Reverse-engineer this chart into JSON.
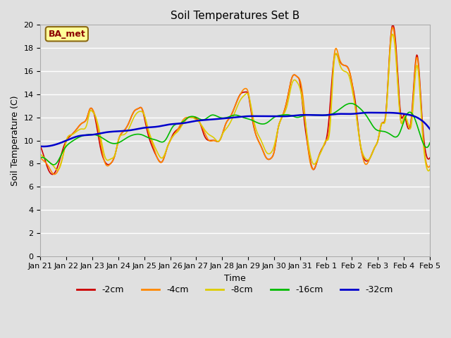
{
  "title": "Soil Temperatures Set B",
  "xlabel": "Time",
  "ylabel": "Soil Temperature (C)",
  "bg_color": "#e0e0e0",
  "ylim": [
    0,
    20
  ],
  "yticks": [
    0,
    2,
    4,
    6,
    8,
    10,
    12,
    14,
    16,
    18,
    20
  ],
  "annotation_text": "BA_met",
  "annotation_color": "#8b0000",
  "annotation_bg": "#ffff99",
  "series": {
    "-2cm": {
      "color": "#cc0000",
      "lw": 1.2
    },
    "-4cm": {
      "color": "#ff8800",
      "lw": 1.2
    },
    "-8cm": {
      "color": "#ddcc00",
      "lw": 1.2
    },
    "-16cm": {
      "color": "#00bb00",
      "lw": 1.2
    },
    "-32cm": {
      "color": "#0000cc",
      "lw": 1.8
    }
  },
  "x_labels": [
    "Jan 21",
    "Jan 22",
    "Jan 23",
    "Jan 24",
    "Jan 25",
    "Jan 26",
    "Jan 27",
    "Jan 28",
    "Jan 29",
    "Jan 30",
    "Jan 31",
    "Feb 1",
    "Feb 2",
    "Feb 3",
    "Feb 4",
    "Feb 5"
  ],
  "t_2cm": [
    0.0,
    0.15,
    0.3,
    0.5,
    0.7,
    0.9,
    1.0,
    1.2,
    1.4,
    1.6,
    1.8,
    1.9,
    2.0,
    2.1,
    2.3,
    2.5,
    2.7,
    2.9,
    3.0,
    3.2,
    3.4,
    3.6,
    3.8,
    3.9,
    4.0,
    4.15,
    4.3,
    4.5,
    4.7,
    4.9,
    5.0,
    5.1,
    5.3,
    5.5,
    5.7,
    5.85,
    6.0,
    6.15,
    6.3,
    6.5,
    6.7,
    6.9,
    7.0,
    7.15,
    7.3,
    7.5,
    7.7,
    7.9,
    8.0,
    8.15,
    8.3,
    8.5,
    8.7,
    8.9,
    9.0,
    9.15,
    9.3,
    9.5,
    9.7,
    9.9,
    10.0,
    10.1,
    10.3,
    10.5,
    10.7,
    10.9,
    11.0,
    11.1,
    11.3,
    11.5,
    11.7,
    11.9,
    12.0,
    12.15,
    12.3,
    12.5,
    12.7,
    12.9,
    13.0,
    13.15,
    13.3,
    13.5,
    13.7,
    13.9,
    14.0,
    14.1,
    14.3,
    14.5,
    14.7,
    14.9,
    15.0
  ],
  "v_2cm": [
    9.5,
    8.5,
    7.5,
    7.1,
    8.0,
    9.5,
    10.0,
    10.5,
    11.0,
    11.5,
    12.0,
    12.7,
    12.7,
    12.0,
    9.5,
    8.1,
    8.0,
    9.0,
    10.0,
    10.8,
    11.5,
    12.5,
    12.8,
    12.8,
    12.0,
    10.5,
    9.5,
    8.5,
    8.2,
    9.5,
    10.0,
    10.5,
    11.0,
    11.5,
    12.0,
    12.0,
    11.9,
    11.5,
    10.5,
    10.0,
    10.0,
    10.0,
    10.5,
    11.5,
    12.0,
    13.0,
    14.0,
    14.2,
    14.0,
    12.0,
    10.5,
    9.5,
    8.5,
    8.5,
    9.0,
    11.0,
    12.0,
    13.5,
    15.5,
    15.5,
    15.0,
    13.0,
    9.5,
    7.5,
    8.5,
    9.5,
    10.0,
    11.5,
    16.9,
    17.0,
    16.5,
    16.0,
    15.0,
    13.0,
    10.0,
    8.3,
    8.5,
    9.5,
    10.0,
    11.5,
    12.2,
    19.1,
    18.0,
    12.0,
    12.2,
    11.5,
    12.2,
    17.4,
    12.0,
    8.5,
    8.5
  ],
  "t_4cm": [
    0.0,
    0.15,
    0.3,
    0.5,
    0.7,
    0.9,
    1.0,
    1.2,
    1.4,
    1.6,
    1.8,
    1.9,
    2.0,
    2.1,
    2.3,
    2.5,
    2.7,
    2.9,
    3.0,
    3.2,
    3.4,
    3.6,
    3.8,
    3.9,
    4.0,
    4.15,
    4.3,
    4.5,
    4.7,
    4.9,
    5.0,
    5.15,
    5.3,
    5.5,
    5.7,
    5.85,
    6.0,
    6.15,
    6.3,
    6.5,
    6.7,
    6.9,
    7.0,
    7.15,
    7.3,
    7.5,
    7.7,
    7.9,
    8.0,
    8.15,
    8.3,
    8.5,
    8.7,
    8.9,
    9.0,
    9.15,
    9.3,
    9.5,
    9.7,
    9.9,
    10.0,
    10.15,
    10.3,
    10.5,
    10.7,
    10.9,
    11.0,
    11.15,
    11.3,
    11.5,
    11.7,
    11.9,
    12.0,
    12.15,
    12.3,
    12.5,
    12.7,
    12.9,
    13.0,
    13.15,
    13.3,
    13.5,
    13.7,
    13.9,
    14.0,
    14.15,
    14.3,
    14.5,
    14.7,
    14.9,
    15.0
  ],
  "v_4cm": [
    8.5,
    8.2,
    7.8,
    7.1,
    7.5,
    9.0,
    10.0,
    10.5,
    11.0,
    11.5,
    12.0,
    12.7,
    12.7,
    12.2,
    10.0,
    8.0,
    8.0,
    9.0,
    10.0,
    10.8,
    11.5,
    12.5,
    12.8,
    12.8,
    12.2,
    10.8,
    9.8,
    8.5,
    8.2,
    9.5,
    10.0,
    10.5,
    11.0,
    11.8,
    12.0,
    12.0,
    12.0,
    11.5,
    10.8,
    10.0,
    10.0,
    10.0,
    10.5,
    11.5,
    12.0,
    13.0,
    14.0,
    14.5,
    14.2,
    12.2,
    10.5,
    9.5,
    8.5,
    8.5,
    9.0,
    11.0,
    12.0,
    13.5,
    15.5,
    15.5,
    15.2,
    13.0,
    9.5,
    7.5,
    8.5,
    9.5,
    10.0,
    11.5,
    17.0,
    17.2,
    16.5,
    16.0,
    15.0,
    12.5,
    10.0,
    8.0,
    8.5,
    9.5,
    10.0,
    11.5,
    12.1,
    19.0,
    17.5,
    11.5,
    12.0,
    11.5,
    12.0,
    17.2,
    11.5,
    7.8,
    7.8
  ],
  "t_8cm": [
    0.0,
    0.15,
    0.3,
    0.5,
    0.7,
    0.9,
    1.0,
    1.2,
    1.4,
    1.6,
    1.8,
    1.9,
    2.0,
    2.1,
    2.3,
    2.5,
    2.7,
    2.9,
    3.0,
    3.2,
    3.4,
    3.6,
    3.8,
    3.9,
    4.0,
    4.15,
    4.3,
    4.5,
    4.7,
    4.9,
    5.0,
    5.15,
    5.3,
    5.5,
    5.7,
    5.85,
    6.0,
    6.15,
    6.3,
    6.5,
    6.7,
    6.9,
    7.0,
    7.15,
    7.3,
    7.5,
    7.7,
    7.9,
    8.0,
    8.15,
    8.3,
    8.5,
    8.7,
    8.9,
    9.0,
    9.15,
    9.3,
    9.5,
    9.7,
    9.9,
    10.0,
    10.15,
    10.3,
    10.5,
    10.7,
    10.9,
    11.0,
    11.15,
    11.3,
    11.5,
    11.7,
    11.9,
    12.0,
    12.15,
    12.3,
    12.5,
    12.7,
    12.9,
    13.0,
    13.15,
    13.3,
    13.5,
    13.7,
    13.9,
    14.0,
    14.15,
    14.3,
    14.5,
    14.7,
    14.9,
    15.0
  ],
  "v_8cm": [
    8.8,
    8.5,
    8.2,
    7.8,
    7.5,
    9.0,
    10.0,
    10.5,
    10.8,
    11.0,
    11.5,
    12.5,
    12.5,
    12.2,
    10.5,
    8.5,
    8.4,
    9.0,
    10.0,
    10.5,
    11.0,
    12.0,
    12.5,
    12.5,
    12.2,
    11.0,
    10.0,
    9.0,
    8.5,
    9.5,
    10.0,
    10.5,
    10.8,
    11.5,
    12.0,
    12.0,
    11.8,
    11.5,
    11.0,
    10.5,
    10.2,
    10.0,
    10.5,
    11.0,
    11.5,
    12.5,
    13.5,
    14.0,
    14.0,
    12.5,
    11.0,
    10.0,
    9.0,
    9.0,
    9.5,
    11.0,
    12.0,
    13.0,
    15.0,
    15.0,
    14.5,
    12.5,
    10.0,
    8.0,
    8.5,
    9.5,
    10.0,
    11.0,
    16.5,
    16.8,
    16.0,
    15.5,
    14.5,
    12.5,
    10.0,
    8.5,
    8.5,
    9.5,
    10.0,
    11.5,
    12.0,
    18.5,
    17.0,
    11.5,
    12.0,
    11.5,
    11.5,
    16.5,
    11.2,
    7.5,
    7.5
  ],
  "t_16cm": [
    0.0,
    0.3,
    0.6,
    0.9,
    1.2,
    1.5,
    1.8,
    2.1,
    2.4,
    2.7,
    3.0,
    3.3,
    3.6,
    3.9,
    4.2,
    4.5,
    4.8,
    5.1,
    5.4,
    5.7,
    6.0,
    6.3,
    6.6,
    6.9,
    7.2,
    7.5,
    7.8,
    8.1,
    8.4,
    8.7,
    9.0,
    9.3,
    9.6,
    9.9,
    10.2,
    10.5,
    10.8,
    11.1,
    11.4,
    11.7,
    12.0,
    12.3,
    12.6,
    12.9,
    13.2,
    13.5,
    13.8,
    14.1,
    14.4,
    14.7,
    15.0
  ],
  "v_16cm": [
    8.5,
    8.2,
    8.0,
    9.2,
    9.9,
    10.3,
    10.5,
    10.5,
    10.2,
    9.8,
    9.8,
    10.2,
    10.5,
    10.5,
    10.2,
    10.0,
    10.0,
    11.2,
    11.5,
    12.0,
    12.0,
    11.8,
    12.2,
    12.0,
    12.0,
    12.2,
    12.0,
    11.8,
    11.5,
    11.5,
    12.0,
    12.2,
    12.2,
    12.0,
    12.2,
    12.2,
    12.2,
    12.2,
    12.5,
    13.0,
    13.2,
    12.8,
    12.0,
    11.0,
    10.8,
    10.5,
    10.5,
    12.2,
    12.0,
    10.0,
    9.8
  ],
  "t_32cm": [
    0.0,
    0.5,
    1.0,
    1.5,
    2.0,
    2.5,
    3.0,
    3.5,
    4.0,
    4.5,
    5.0,
    5.5,
    6.0,
    6.5,
    7.0,
    7.5,
    8.0,
    8.5,
    9.0,
    9.5,
    10.0,
    10.5,
    11.0,
    11.5,
    12.0,
    12.5,
    13.0,
    13.5,
    14.0,
    14.5,
    15.0
  ],
  "v_32cm": [
    9.5,
    9.6,
    10.0,
    10.4,
    10.5,
    10.7,
    10.8,
    10.9,
    11.1,
    11.2,
    11.4,
    11.5,
    11.7,
    11.8,
    11.9,
    12.0,
    12.1,
    12.1,
    12.1,
    12.1,
    12.2,
    12.2,
    12.2,
    12.3,
    12.3,
    12.4,
    12.4,
    12.4,
    12.3,
    12.0,
    11.0
  ]
}
